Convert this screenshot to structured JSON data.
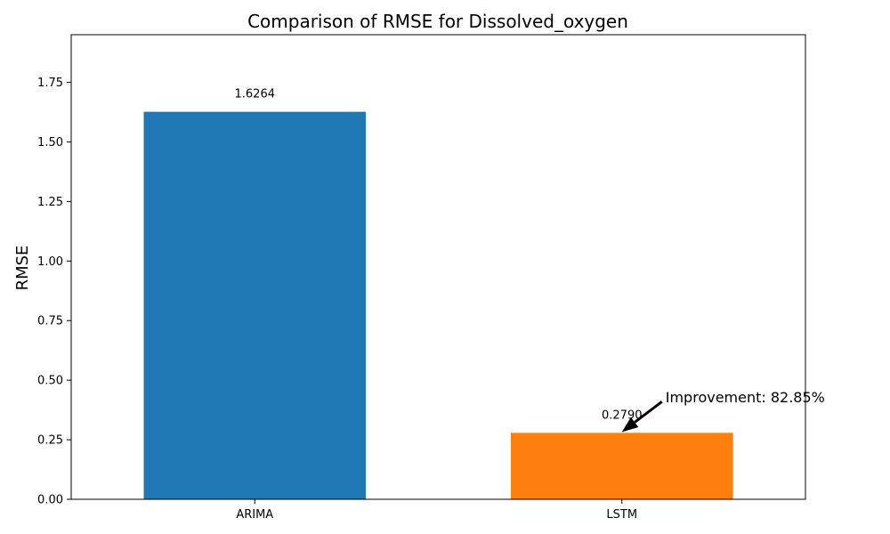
{
  "chart_data": {
    "type": "bar",
    "title": "Comparison of RMSE for Dissolved_oxygen",
    "xlabel": "",
    "ylabel": "RMSE",
    "categories": [
      "ARIMA",
      "LSTM"
    ],
    "values": [
      1.6264,
      0.279
    ],
    "value_labels": [
      "1.6264",
      "0.2790"
    ],
    "colors": [
      "#1f77b4",
      "#ff7f0e"
    ],
    "ylim": [
      0,
      1.95
    ],
    "yticks": [
      0,
      0.25,
      0.5,
      0.75,
      1.0,
      1.25,
      1.5,
      1.75
    ],
    "ytick_labels": [
      "0.00",
      "0.25",
      "0.50",
      "0.75",
      "1.00",
      "1.25",
      "1.50",
      "1.75"
    ],
    "grid": false,
    "annotation": {
      "text": "Improvement: 82.85%",
      "target_category": "LSTM",
      "target_value": 0.279,
      "text_value": 0.43
    }
  }
}
